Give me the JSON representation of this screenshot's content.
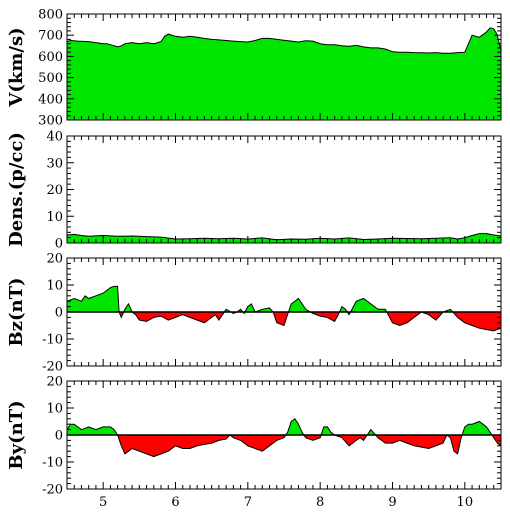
{
  "chart_data": [
    {
      "type": "area",
      "ylabel": "V(km/s)",
      "ylim": [
        300,
        800
      ],
      "yticks": [
        300,
        400,
        500,
        600,
        700,
        800
      ],
      "baseline": 300,
      "colors": {
        "positive": "#00e600",
        "negative": "#00e600"
      },
      "x": [
        4.5,
        4.55,
        4.65,
        4.8,
        4.9,
        5.0,
        5.05,
        5.1,
        5.2,
        5.25,
        5.3,
        5.4,
        5.5,
        5.6,
        5.7,
        5.8,
        5.85,
        5.9,
        6.0,
        6.1,
        6.2,
        6.3,
        6.4,
        6.5,
        6.6,
        6.7,
        6.8,
        6.9,
        7.0,
        7.1,
        7.2,
        7.3,
        7.4,
        7.5,
        7.6,
        7.7,
        7.8,
        7.9,
        8.0,
        8.1,
        8.2,
        8.3,
        8.4,
        8.5,
        8.6,
        8.7,
        8.8,
        8.9,
        9.0,
        9.1,
        9.2,
        9.3,
        9.4,
        9.5,
        9.6,
        9.7,
        9.8,
        9.9,
        10.0,
        10.05,
        10.1,
        10.2,
        10.3,
        10.35,
        10.4,
        10.45,
        10.5
      ],
      "values": [
        670,
        675,
        672,
        670,
        665,
        660,
        660,
        655,
        645,
        650,
        660,
        665,
        660,
        665,
        660,
        670,
        695,
        705,
        695,
        690,
        695,
        690,
        685,
        680,
        678,
        675,
        672,
        670,
        668,
        675,
        685,
        685,
        680,
        676,
        672,
        668,
        674,
        672,
        660,
        655,
        655,
        650,
        648,
        652,
        645,
        640,
        640,
        635,
        622,
        620,
        620,
        618,
        617,
        616,
        618,
        615,
        615,
        618,
        620,
        660,
        700,
        690,
        715,
        735,
        730,
        700,
        625
      ]
    },
    {
      "type": "area",
      "ylabel": "Dens.(p/cc)",
      "ylim": [
        0,
        40
      ],
      "yticks": [
        0,
        10,
        20,
        30,
        40
      ],
      "baseline": 0,
      "colors": {
        "positive": "#00e600",
        "negative": "#00e600"
      },
      "x": [
        4.5,
        4.6,
        4.7,
        4.8,
        5.0,
        5.2,
        5.4,
        5.6,
        5.8,
        6.0,
        6.2,
        6.4,
        6.6,
        6.8,
        7.0,
        7.2,
        7.4,
        7.6,
        7.8,
        8.0,
        8.2,
        8.4,
        8.6,
        8.8,
        9.0,
        9.2,
        9.4,
        9.6,
        9.8,
        9.9,
        10.0,
        10.1,
        10.2,
        10.3,
        10.4,
        10.5
      ],
      "values": [
        3.0,
        3.2,
        2.8,
        2.5,
        2.8,
        2.5,
        2.6,
        2.4,
        2.2,
        1.5,
        1.6,
        1.8,
        1.6,
        1.8,
        1.5,
        1.9,
        1.2,
        1.5,
        1.4,
        1.8,
        1.5,
        1.9,
        1.3,
        1.5,
        1.8,
        1.7,
        1.6,
        1.8,
        2.0,
        1.5,
        2.0,
        2.8,
        3.5,
        3.5,
        3.0,
        2.6
      ]
    },
    {
      "type": "area",
      "ylabel": "Bz(nT)",
      "ylim": [
        -20,
        20
      ],
      "yticks": [
        -20,
        -10,
        0,
        10,
        20
      ],
      "baseline": 0,
      "colors": {
        "positive": "#00e600",
        "negative": "#ff0000"
      },
      "x": [
        4.5,
        4.6,
        4.7,
        4.75,
        4.8,
        4.9,
        5.0,
        5.1,
        5.15,
        5.2,
        5.22,
        5.25,
        5.3,
        5.35,
        5.4,
        5.45,
        5.5,
        5.6,
        5.7,
        5.8,
        5.9,
        6.0,
        6.1,
        6.2,
        6.3,
        6.4,
        6.5,
        6.55,
        6.6,
        6.7,
        6.8,
        6.85,
        6.9,
        6.95,
        7.0,
        7.05,
        7.1,
        7.2,
        7.3,
        7.35,
        7.4,
        7.5,
        7.6,
        7.7,
        7.8,
        7.9,
        8.0,
        8.1,
        8.2,
        8.25,
        8.3,
        8.35,
        8.4,
        8.5,
        8.6,
        8.7,
        8.8,
        8.9,
        9.0,
        9.1,
        9.2,
        9.3,
        9.4,
        9.5,
        9.6,
        9.7,
        9.8,
        9.9,
        10.0,
        10.1,
        10.2,
        10.3,
        10.4,
        10.5
      ],
      "values": [
        4,
        5,
        4,
        6,
        5,
        6,
        7,
        9,
        9.5,
        9.5,
        0,
        -2,
        1,
        3,
        0,
        -1,
        -3,
        -3.5,
        -2,
        -1.5,
        -3,
        -2,
        -1,
        -2,
        -3,
        -4,
        -2,
        -1,
        -3,
        1,
        -0.5,
        0,
        1,
        -0.5,
        2,
        3,
        0,
        1,
        1.5,
        0,
        -4,
        -5,
        3,
        5,
        1,
        -0.5,
        -1.5,
        -2,
        -3.5,
        -1,
        2,
        1,
        -1,
        4,
        5,
        3,
        1,
        1,
        -4,
        -5,
        -4,
        -2,
        0,
        -1,
        -3,
        0,
        1,
        -2,
        -4,
        -5,
        -6,
        -6.5,
        -7,
        -6
      ]
    },
    {
      "type": "area",
      "ylabel": "By(nT)",
      "ylim": [
        -20,
        20
      ],
      "yticks": [
        -20,
        -10,
        0,
        10,
        20
      ],
      "baseline": 0,
      "colors": {
        "positive": "#00e600",
        "negative": "#ff0000"
      },
      "x": [
        4.5,
        4.55,
        4.6,
        4.7,
        4.8,
        4.9,
        5.0,
        5.1,
        5.15,
        5.2,
        5.25,
        5.3,
        5.35,
        5.4,
        5.5,
        5.6,
        5.7,
        5.8,
        5.9,
        6.0,
        6.1,
        6.2,
        6.3,
        6.4,
        6.5,
        6.6,
        6.7,
        6.75,
        6.8,
        6.9,
        7.0,
        7.1,
        7.2,
        7.3,
        7.4,
        7.5,
        7.55,
        7.6,
        7.65,
        7.7,
        7.75,
        7.8,
        7.9,
        8.0,
        8.05,
        8.1,
        8.15,
        8.2,
        8.3,
        8.4,
        8.5,
        8.55,
        8.6,
        8.65,
        8.7,
        8.8,
        8.9,
        9.0,
        9.1,
        9.2,
        9.3,
        9.4,
        9.5,
        9.6,
        9.7,
        9.75,
        9.8,
        9.85,
        9.9,
        9.95,
        10.0,
        10.05,
        10.1,
        10.2,
        10.3,
        10.35,
        10.4,
        10.45,
        10.5
      ],
      "values": [
        2,
        4,
        4,
        2,
        3,
        2,
        3,
        3,
        2,
        0,
        -4,
        -7,
        -6,
        -5,
        -6,
        -7,
        -8,
        -7,
        -6,
        -4,
        -5,
        -5,
        -4,
        -3.5,
        -3,
        -2,
        -1.5,
        0,
        -1,
        -2,
        -4,
        -5,
        -6,
        -4,
        -2,
        -1,
        1,
        5,
        6,
        4,
        1,
        -1,
        -2,
        -1,
        3,
        3,
        1,
        0,
        -1,
        -4,
        -2,
        -1,
        -2,
        0,
        2,
        -1,
        -3,
        -3,
        -2,
        -3,
        -4,
        -4.5,
        -5,
        -4,
        -3,
        0,
        -1,
        -6,
        -7,
        -1,
        3,
        4,
        4,
        5,
        3,
        1,
        -1,
        -3,
        -4
      ]
    }
  ],
  "x_axis": {
    "range": [
      4.5,
      10.5
    ],
    "ticks": [
      5,
      6,
      7,
      8,
      9,
      10
    ],
    "tick_labels": [
      "5",
      "6",
      "7",
      "8",
      "9",
      "10"
    ]
  }
}
